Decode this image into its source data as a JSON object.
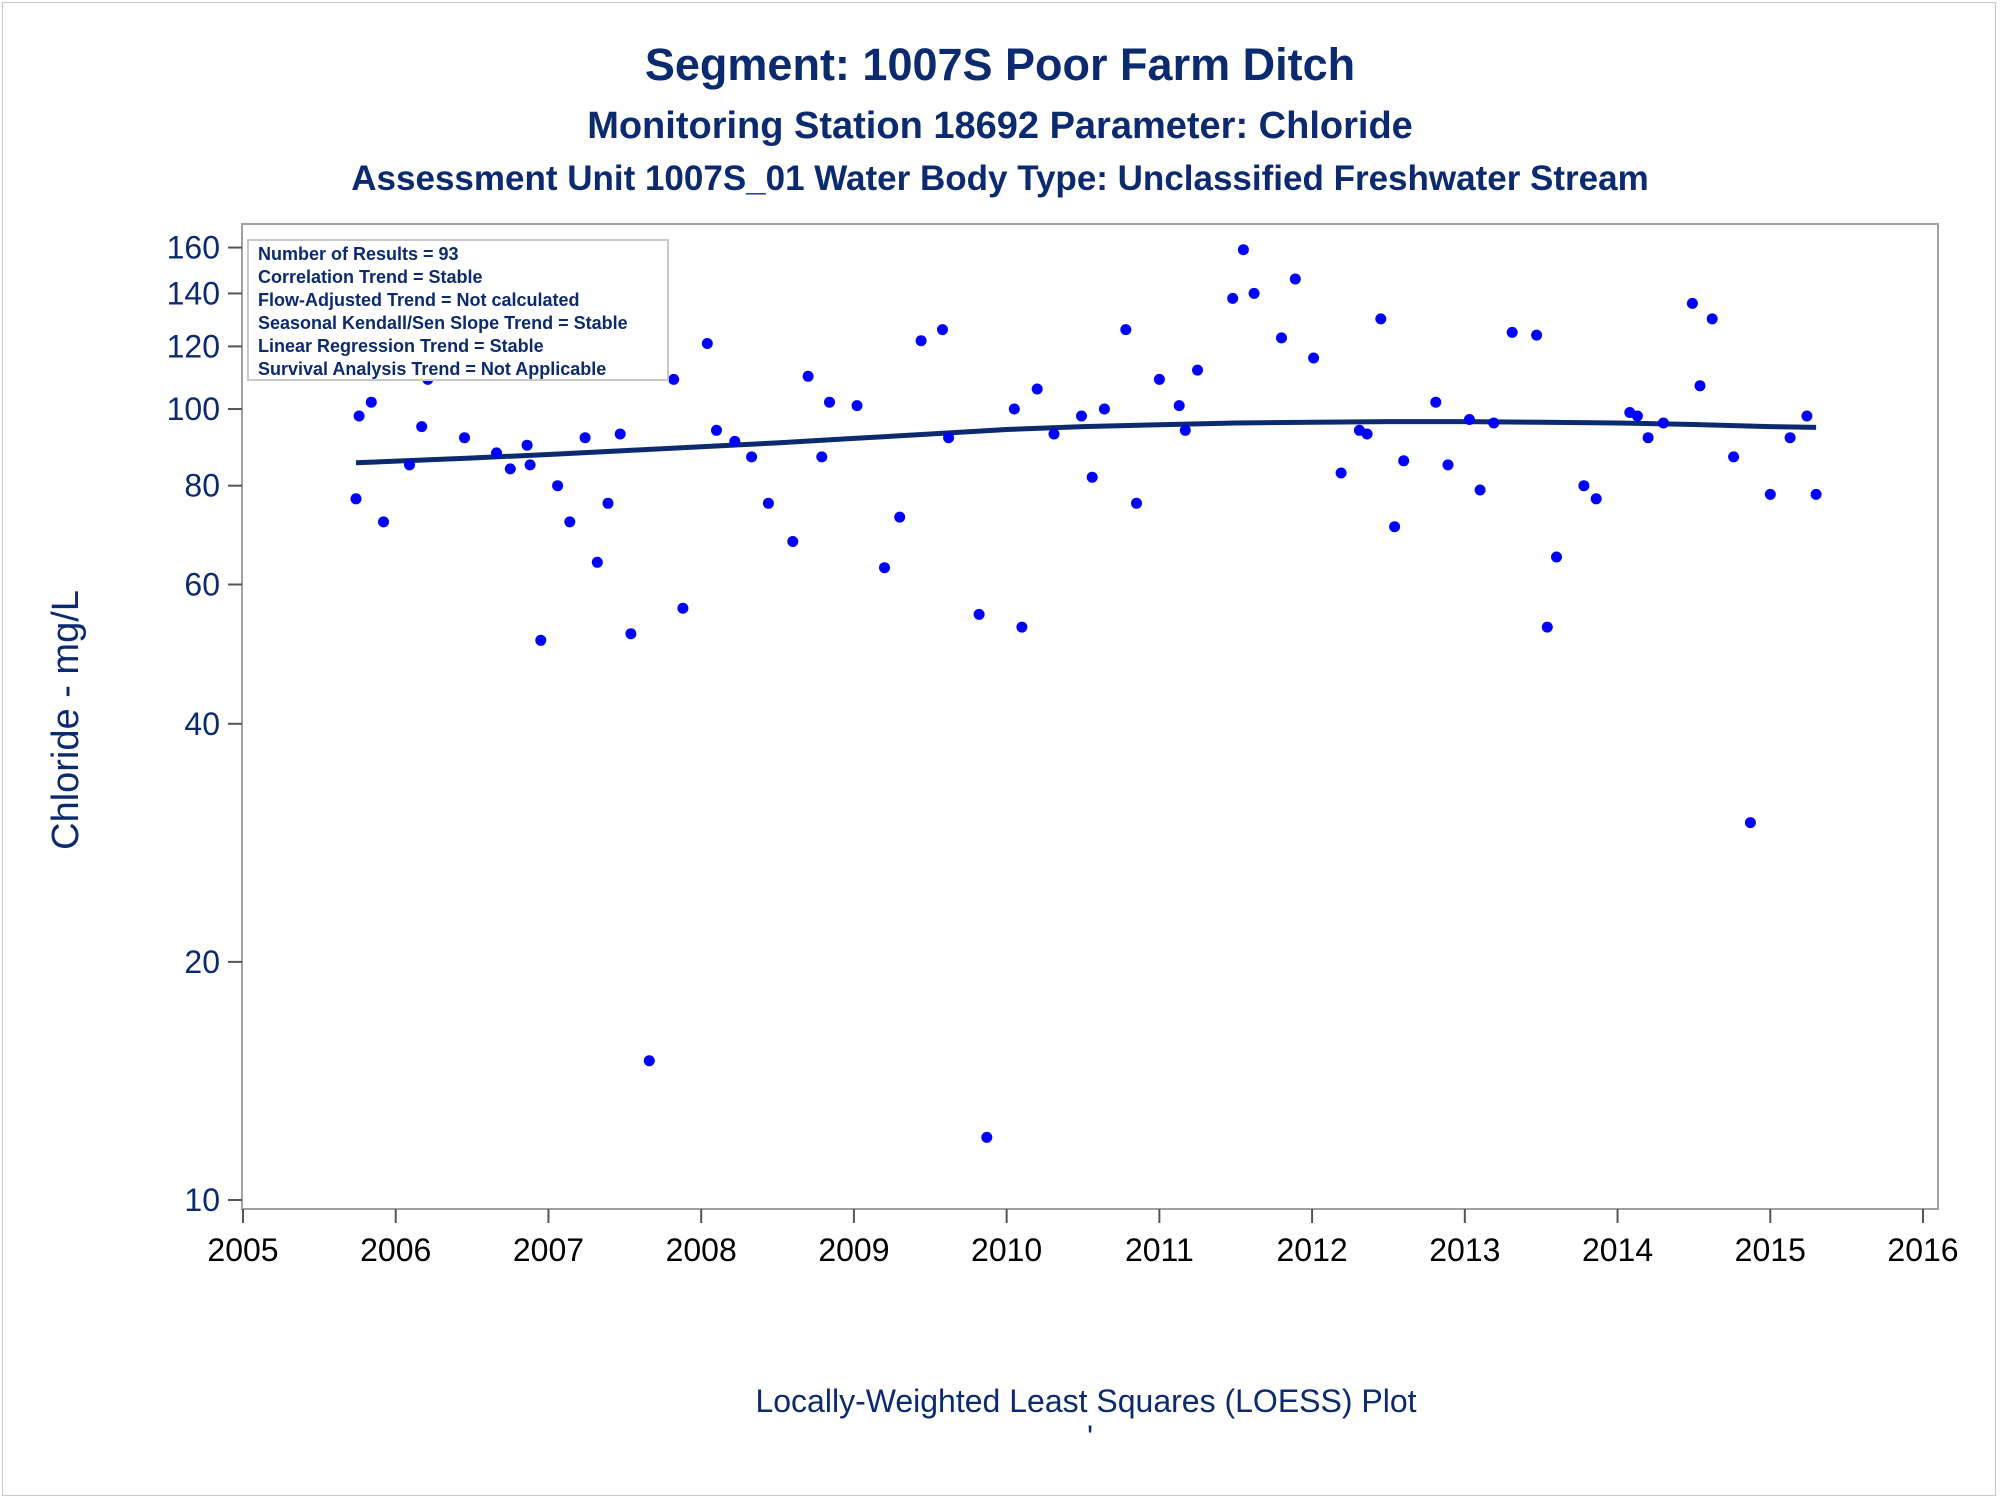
{
  "chart_data": {
    "type": "scatter",
    "title": "Segment: 1007S  Poor Farm Ditch",
    "subtitle": "Monitoring Station 18692 Parameter: Chloride",
    "subtitle2": "Assessment Unit 1007S_01   Water Body Type: Unclassified Freshwater Stream",
    "ylabel": "Chloride - mg/L",
    "footnote": "Locally-Weighted Least Squares (LOESS) Plot",
    "footnote_mark": "'",
    "yscale": "log",
    "xlim": [
      2005,
      2016
    ],
    "ylim": [
      10,
      165
    ],
    "x_ticks": [
      "2005",
      "2006",
      "2007",
      "2008",
      "2009",
      "2010",
      "2011",
      "2012",
      "2013",
      "2014",
      "2015",
      "2016"
    ],
    "y_ticks": [
      10,
      20,
      40,
      60,
      80,
      100,
      120,
      140,
      160
    ],
    "stats": [
      "Number of Results = 93",
      "Correlation Trend = Stable",
      "Flow-Adjusted Trend = Not calculated",
      "Seasonal Kendall/Sen Slope Trend = Stable",
      "Linear Regression Trend = Stable",
      "Survival Analysis Trend = Not Applicable"
    ],
    "point_color": "#0000ff",
    "line_color": "#0b2a6f",
    "series": [
      {
        "type": "scatter",
        "points": [
          [
            2005.74,
            77
          ],
          [
            2005.76,
            98
          ],
          [
            2005.84,
            102
          ],
          [
            2005.92,
            72
          ],
          [
            2006.09,
            85
          ],
          [
            2006.17,
            95
          ],
          [
            2006.21,
            109
          ],
          [
            2006.31,
            122
          ],
          [
            2006.41,
            129
          ],
          [
            2006.45,
            92
          ],
          [
            2006.58,
            121
          ],
          [
            2006.66,
            88
          ],
          [
            2006.75,
            84
          ],
          [
            2006.86,
            90
          ],
          [
            2006.88,
            85
          ],
          [
            2006.95,
            51
          ],
          [
            2007.06,
            80
          ],
          [
            2007.14,
            72
          ],
          [
            2007.24,
            92
          ],
          [
            2007.32,
            64
          ],
          [
            2007.39,
            76
          ],
          [
            2007.47,
            93
          ],
          [
            2007.54,
            52
          ],
          [
            2007.66,
            15
          ],
          [
            2007.71,
            119
          ],
          [
            2007.82,
            109
          ],
          [
            2007.88,
            56
          ],
          [
            2008.04,
            121
          ],
          [
            2008.1,
            94
          ],
          [
            2008.22,
            91
          ],
          [
            2008.33,
            87
          ],
          [
            2008.44,
            76
          ],
          [
            2008.6,
            68
          ],
          [
            2008.7,
            110
          ],
          [
            2008.79,
            87
          ],
          [
            2008.84,
            102
          ],
          [
            2009.02,
            101
          ],
          [
            2009.2,
            63
          ],
          [
            2009.3,
            73
          ],
          [
            2009.44,
            122
          ],
          [
            2009.58,
            126
          ],
          [
            2009.62,
            92
          ],
          [
            2009.82,
            55
          ],
          [
            2009.87,
            12
          ],
          [
            2010.05,
            100
          ],
          [
            2010.1,
            53
          ],
          [
            2010.2,
            106
          ],
          [
            2010.31,
            93
          ],
          [
            2010.49,
            98
          ],
          [
            2010.56,
            82
          ],
          [
            2010.64,
            100
          ],
          [
            2010.78,
            126
          ],
          [
            2010.85,
            76
          ],
          [
            2011.0,
            109
          ],
          [
            2011.13,
            101
          ],
          [
            2011.17,
            94
          ],
          [
            2011.25,
            112
          ],
          [
            2011.48,
            138
          ],
          [
            2011.55,
            159
          ],
          [
            2011.62,
            140
          ],
          [
            2011.8,
            123
          ],
          [
            2011.89,
            146
          ],
          [
            2012.01,
            116
          ],
          [
            2012.19,
            83
          ],
          [
            2012.31,
            94
          ],
          [
            2012.36,
            93
          ],
          [
            2012.45,
            130
          ],
          [
            2012.54,
            71
          ],
          [
            2012.6,
            86
          ],
          [
            2012.81,
            102
          ],
          [
            2012.89,
            85
          ],
          [
            2013.03,
            97
          ],
          [
            2013.1,
            79
          ],
          [
            2013.19,
            96
          ],
          [
            2013.31,
            125
          ],
          [
            2013.47,
            124
          ],
          [
            2013.54,
            53
          ],
          [
            2013.6,
            65
          ],
          [
            2013.78,
            80
          ],
          [
            2013.86,
            77
          ],
          [
            2014.08,
            99
          ],
          [
            2014.13,
            98
          ],
          [
            2014.2,
            92
          ],
          [
            2014.3,
            96
          ],
          [
            2014.49,
            136
          ],
          [
            2014.54,
            107
          ],
          [
            2014.62,
            130
          ],
          [
            2014.76,
            87
          ],
          [
            2014.87,
            30
          ],
          [
            2015.0,
            78
          ],
          [
            2015.13,
            92
          ],
          [
            2015.24,
            98
          ],
          [
            2015.3,
            78
          ]
        ]
      },
      {
        "type": "line",
        "points": [
          [
            2005.74,
            85.5
          ],
          [
            2006.5,
            86.7
          ],
          [
            2007.0,
            87.6
          ],
          [
            2007.5,
            88.6
          ],
          [
            2008.0,
            89.6
          ],
          [
            2008.5,
            90.6
          ],
          [
            2009.0,
            91.8
          ],
          [
            2009.5,
            93.0
          ],
          [
            2010.0,
            94.2
          ],
          [
            2010.5,
            95.0
          ],
          [
            2011.0,
            95.5
          ],
          [
            2011.5,
            96.0
          ],
          [
            2012.0,
            96.2
          ],
          [
            2012.5,
            96.4
          ],
          [
            2013.0,
            96.4
          ],
          [
            2013.5,
            96.2
          ],
          [
            2014.0,
            96.0
          ],
          [
            2014.5,
            95.6
          ],
          [
            2015.0,
            95.0
          ],
          [
            2015.3,
            94.8
          ]
        ]
      }
    ]
  }
}
